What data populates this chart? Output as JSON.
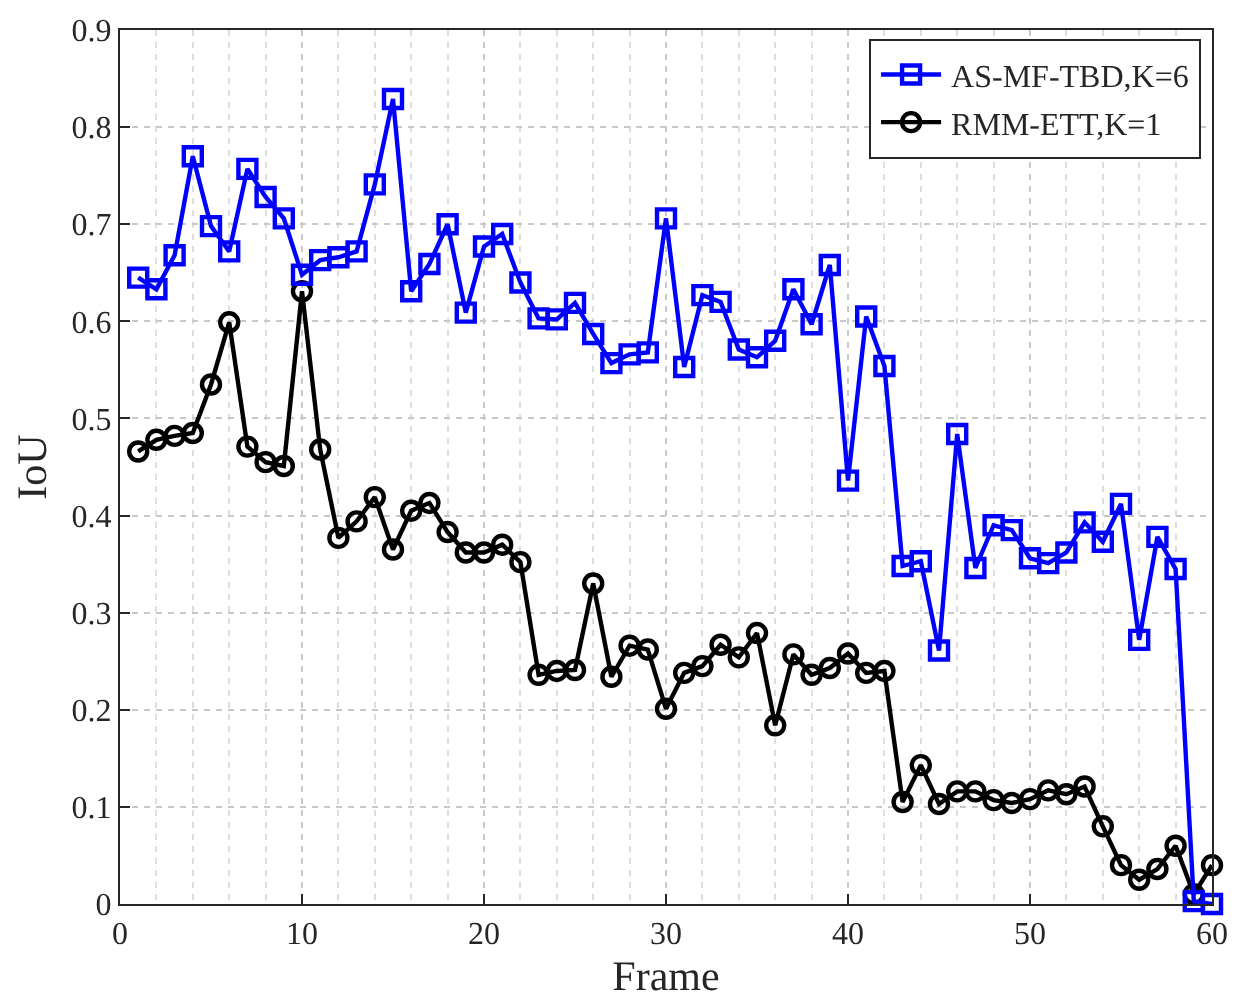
{
  "chart_data": {
    "type": "line",
    "xlabel": "Frame",
    "ylabel": "IoU",
    "x": [
      1,
      2,
      3,
      4,
      5,
      6,
      7,
      8,
      9,
      10,
      11,
      12,
      13,
      14,
      15,
      16,
      17,
      18,
      19,
      20,
      21,
      22,
      23,
      24,
      25,
      26,
      27,
      28,
      29,
      30,
      31,
      32,
      33,
      34,
      35,
      36,
      37,
      38,
      39,
      40,
      41,
      42,
      43,
      44,
      45,
      46,
      47,
      48,
      49,
      50,
      51,
      52,
      53,
      54,
      55,
      56,
      57,
      58,
      59,
      60
    ],
    "series": [
      {
        "name": "AS-MF-TBD,K=6",
        "color": "#0000ff",
        "marker": "square",
        "values": [
          0.645,
          0.633,
          0.668,
          0.77,
          0.698,
          0.672,
          0.757,
          0.728,
          0.706,
          0.648,
          0.663,
          0.666,
          0.672,
          0.741,
          0.829,
          0.631,
          0.659,
          0.7,
          0.609,
          0.677,
          0.69,
          0.64,
          0.603,
          0.602,
          0.619,
          0.587,
          0.557,
          0.566,
          0.568,
          0.706,
          0.553,
          0.627,
          0.62,
          0.571,
          0.563,
          0.58,
          0.633,
          0.597,
          0.658,
          0.436,
          0.605,
          0.554,
          0.348,
          0.353,
          0.261,
          0.484,
          0.346,
          0.39,
          0.385,
          0.356,
          0.351,
          0.362,
          0.393,
          0.373,
          0.412,
          0.272,
          0.378,
          0.345,
          0.003,
          0.0
        ]
      },
      {
        "name": "RMM-ETT,K=1",
        "color": "#000000",
        "marker": "circle",
        "values": [
          0.466,
          0.478,
          0.482,
          0.485,
          0.535,
          0.599,
          0.471,
          0.455,
          0.451,
          0.631,
          0.468,
          0.377,
          0.394,
          0.419,
          0.365,
          0.405,
          0.413,
          0.383,
          0.362,
          0.362,
          0.37,
          0.352,
          0.236,
          0.24,
          0.241,
          0.33,
          0.234,
          0.266,
          0.262,
          0.201,
          0.238,
          0.245,
          0.267,
          0.254,
          0.279,
          0.184,
          0.257,
          0.236,
          0.243,
          0.258,
          0.238,
          0.24,
          0.105,
          0.143,
          0.103,
          0.116,
          0.116,
          0.107,
          0.104,
          0.108,
          0.117,
          0.113,
          0.121,
          0.08,
          0.04,
          0.025,
          0.036,
          0.06,
          0.01,
          0.04
        ]
      }
    ],
    "xlim": [
      0,
      60
    ],
    "xticks": [
      0,
      10,
      20,
      30,
      40,
      50,
      60
    ],
    "ylim": [
      0,
      0.9
    ],
    "yticks": [
      0,
      0.1,
      0.2,
      0.3,
      0.4,
      0.5,
      0.6,
      0.7,
      0.8,
      0.9
    ],
    "grid": true,
    "legend": "top right",
    "line_style": "solid"
  }
}
